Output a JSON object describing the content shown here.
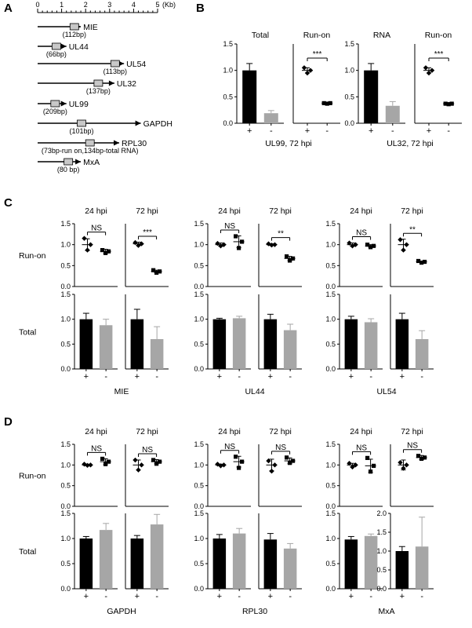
{
  "panels": {
    "A": "A",
    "B": "B",
    "C": "C",
    "D": "D"
  },
  "gene_map": {
    "axis_ticks": [
      "0",
      "1",
      "2",
      "3",
      "4",
      "5"
    ],
    "axis_unit": "(Kb)",
    "genes": [
      {
        "name": "MIE",
        "amplicon": "(112bp)",
        "length_kb": 1.8,
        "box_start_kb": 1.35
      },
      {
        "name": "UL44",
        "amplicon": "(66bp)",
        "length_kb": 1.2,
        "box_start_kb": 0.6
      },
      {
        "name": "UL54",
        "amplicon": "(113bp)",
        "length_kb": 3.6,
        "box_start_kb": 3.05
      },
      {
        "name": "UL32",
        "amplicon": "(137bp)",
        "length_kb": 3.2,
        "box_start_kb": 2.35
      },
      {
        "name": "UL99",
        "amplicon": "(209bp)",
        "length_kb": 1.2,
        "box_start_kb": 0.55
      },
      {
        "name": "GAPDH",
        "amplicon": "(101bp)",
        "length_kb": 4.3,
        "box_start_kb": 1.65
      },
      {
        "name": "RPL30",
        "amplicon": "(73bp-run on,134bp-total RNA)",
        "length_kb": 3.4,
        "box_start_kb": 2.0
      },
      {
        "name": "MxA",
        "amplicon": "(80 bp)",
        "length_kb": 1.8,
        "box_start_kb": 1.1
      }
    ]
  },
  "chart_data": [
    {
      "panel": "B",
      "type": "bar",
      "gene": "UL99, 72 hpi",
      "subplots": [
        {
          "title": "Total",
          "kind": "bar",
          "ylim": [
            0,
            1.5
          ],
          "yticks": [
            "0.0",
            "0.5",
            "1.0",
            "1.5"
          ],
          "categories": [
            "+",
            "-"
          ],
          "values": [
            1.0,
            0.19
          ],
          "errors": [
            0.13,
            0.05
          ]
        },
        {
          "title": "Run-on",
          "kind": "dot",
          "ylim": [
            0,
            1.5
          ],
          "categories": [
            "+",
            "-"
          ],
          "points": [
            [
              1.05,
              0.95,
              1.0
            ],
            [
              0.38,
              0.37,
              0.38
            ]
          ],
          "means": [
            1.0,
            0.38
          ],
          "errors": [
            0.05,
            0.02
          ],
          "sig": "***"
        }
      ]
    },
    {
      "panel": "B",
      "type": "bar",
      "gene": "UL32, 72 hpi",
      "subplots": [
        {
          "title": "RNA",
          "kind": "bar",
          "ylim": [
            0,
            1.5
          ],
          "yticks": [
            "0.0",
            "0.5",
            "1.0",
            "1.5"
          ],
          "categories": [
            "+",
            "-"
          ],
          "values": [
            1.0,
            0.33
          ],
          "errors": [
            0.13,
            0.08
          ]
        },
        {
          "title": "Run-on",
          "kind": "dot",
          "ylim": [
            0,
            1.5
          ],
          "categories": [
            "+",
            "-"
          ],
          "points": [
            [
              1.05,
              0.95,
              1.0
            ],
            [
              0.37,
              0.36,
              0.37
            ]
          ],
          "means": [
            1.0,
            0.37
          ],
          "errors": [
            0.05,
            0.02
          ],
          "sig": "***"
        }
      ]
    },
    {
      "panel": "C",
      "type": "scatter",
      "gene": "MIE",
      "row_labels": [
        "Run-on",
        "Total"
      ],
      "timepoints": [
        {
          "label": "24 hpi",
          "runon_points": [
            [
              1.15,
              0.87,
              1.0
            ],
            [
              0.87,
              0.8,
              0.84
            ]
          ],
          "runon_means": [
            1.0,
            0.84
          ],
          "runon_errors": [
            0.14,
            0.05
          ],
          "sig": "NS",
          "total_values": [
            1.0,
            0.88
          ],
          "total_errors": [
            0.12,
            0.12
          ]
        },
        {
          "label": "72 hpi",
          "runon_points": [
            [
              1.05,
              0.98,
              1.02
            ],
            [
              0.39,
              0.33,
              0.36
            ]
          ],
          "runon_means": [
            1.02,
            0.36
          ],
          "runon_errors": [
            0.04,
            0.03
          ],
          "sig": "***",
          "total_values": [
            1.0,
            0.6
          ],
          "total_errors": [
            0.2,
            0.25
          ]
        }
      ],
      "categories": [
        "+",
        "-"
      ]
    },
    {
      "panel": "C",
      "type": "scatter",
      "gene": "UL44",
      "row_labels": [
        "Run-on",
        "Total"
      ],
      "timepoints": [
        {
          "label": "24 hpi",
          "runon_points": [
            [
              1.03,
              0.97,
              1.0
            ],
            [
              1.2,
              0.92,
              1.07
            ]
          ],
          "runon_means": [
            1.0,
            1.07
          ],
          "runon_errors": [
            0.04,
            0.14
          ],
          "sig": "NS",
          "total_values": [
            1.0,
            1.02
          ],
          "total_errors": [
            0.02,
            0.04
          ]
        },
        {
          "label": "72 hpi",
          "runon_points": [
            [
              1.02,
              0.99,
              1.0
            ],
            [
              0.72,
              0.62,
              0.67
            ]
          ],
          "runon_means": [
            1.0,
            0.67
          ],
          "runon_errors": [
            0.02,
            0.05
          ],
          "sig": "**",
          "total_values": [
            1.0,
            0.78
          ],
          "total_errors": [
            0.1,
            0.12
          ]
        }
      ],
      "categories": [
        "+",
        "-"
      ]
    },
    {
      "panel": "C",
      "type": "scatter",
      "gene": "UL54",
      "row_labels": [
        "Run-on",
        "Total"
      ],
      "timepoints": [
        {
          "label": "24 hpi",
          "runon_points": [
            [
              1.04,
              0.97,
              1.0
            ],
            [
              1.0,
              0.94,
              0.97
            ]
          ],
          "runon_means": [
            1.0,
            0.97
          ],
          "runon_errors": [
            0.04,
            0.03
          ],
          "sig": "NS",
          "total_values": [
            1.0,
            0.94
          ],
          "total_errors": [
            0.06,
            0.07
          ]
        },
        {
          "label": "72 hpi",
          "runon_points": [
            [
              1.12,
              0.87,
              1.0
            ],
            [
              0.61,
              0.57,
              0.59
            ]
          ],
          "runon_means": [
            1.0,
            0.59
          ],
          "runon_errors": [
            0.13,
            0.02
          ],
          "sig": "**",
          "total_values": [
            1.0,
            0.6
          ],
          "total_errors": [
            0.12,
            0.17
          ]
        }
      ],
      "categories": [
        "+",
        "-"
      ]
    },
    {
      "panel": "D",
      "type": "scatter",
      "gene": "GAPDH",
      "row_labels": [
        "Run-on",
        "Total"
      ],
      "timepoints": [
        {
          "label": "24 hpi",
          "runon_points": [
            [
              1.02,
              0.99,
              1.0
            ],
            [
              1.15,
              1.02,
              1.08
            ]
          ],
          "runon_means": [
            1.0,
            1.08
          ],
          "runon_errors": [
            0.02,
            0.07
          ],
          "sig": "NS",
          "total_values": [
            1.0,
            1.17
          ],
          "total_errors": [
            0.04,
            0.13
          ]
        },
        {
          "label": "72 hpi",
          "runon_points": [
            [
              1.12,
              0.88,
              1.0
            ],
            [
              1.12,
              1.03,
              1.08
            ]
          ],
          "runon_means": [
            1.0,
            1.08
          ],
          "runon_errors": [
            0.12,
            0.05
          ],
          "sig": "NS",
          "total_values": [
            1.0,
            1.28
          ],
          "total_errors": [
            0.06,
            0.2
          ]
        }
      ],
      "categories": [
        "+",
        "-"
      ]
    },
    {
      "panel": "D",
      "type": "scatter",
      "gene": "RPL30",
      "row_labels": [
        "Run-on",
        "Total"
      ],
      "timepoints": [
        {
          "label": "24 hpi",
          "runon_points": [
            [
              1.02,
              0.98,
              1.0
            ],
            [
              1.2,
              0.93,
              1.08
            ]
          ],
          "runon_means": [
            1.0,
            1.08
          ],
          "runon_errors": [
            0.02,
            0.13
          ],
          "sig": "NS",
          "total_values": [
            1.0,
            1.1
          ],
          "total_errors": [
            0.08,
            0.1
          ]
        },
        {
          "label": "72 hpi",
          "runon_points": [
            [
              1.1,
              0.85,
              1.0
            ],
            [
              1.18,
              1.05,
              1.1
            ]
          ],
          "runon_means": [
            1.0,
            1.1
          ],
          "runon_errors": [
            0.14,
            0.07
          ],
          "sig": "NS",
          "total_values": [
            0.98,
            0.8
          ],
          "total_errors": [
            0.12,
            0.1
          ]
        }
      ],
      "categories": [
        "+",
        "-"
      ]
    },
    {
      "panel": "D",
      "type": "scatter",
      "gene": "MxA",
      "row_labels": [
        "Run-on",
        "Total"
      ],
      "timepoints": [
        {
          "label": "24 hpi",
          "runon_points": [
            [
              1.04,
              0.95,
              1.0
            ],
            [
              1.17,
              0.84,
              0.98
            ]
          ],
          "runon_means": [
            1.0,
            0.98
          ],
          "runon_errors": [
            0.04,
            0.16
          ],
          "sig": "NS",
          "total_values": [
            0.98,
            1.05
          ],
          "total_errors": [
            0.06,
            0.04
          ]
        },
        {
          "label": "72 hpi",
          "runon_points": [
            [
              1.06,
              0.92,
              1.0
            ],
            [
              1.22,
              1.15,
              1.18
            ]
          ],
          "runon_means": [
            1.0,
            1.18
          ],
          "runon_errors": [
            0.12,
            0.05
          ],
          "sig": "NS",
          "total_values": [
            1.0,
            1.12
          ],
          "total_errors": [
            0.12,
            0.78
          ],
          "total_ylim": [
            0,
            2.0
          ],
          "total_yticks": [
            "0.0",
            "0.5",
            "1.0",
            "1.5",
            "2.0"
          ]
        }
      ],
      "categories": [
        "+",
        "-"
      ]
    }
  ],
  "axis": {
    "runon_ylim": [
      0,
      1.5
    ],
    "runon_yticks": [
      "0.0",
      "0.5",
      "1.0",
      "1.5"
    ],
    "total_ylim": [
      0,
      1.5
    ],
    "total_yticks": [
      "0.0",
      "0.5",
      "1.0",
      "1.5"
    ]
  },
  "colors": {
    "plus_bar": "#000000",
    "minus_bar": "#a6a6a6",
    "gene_box": "#c8c8c8"
  }
}
